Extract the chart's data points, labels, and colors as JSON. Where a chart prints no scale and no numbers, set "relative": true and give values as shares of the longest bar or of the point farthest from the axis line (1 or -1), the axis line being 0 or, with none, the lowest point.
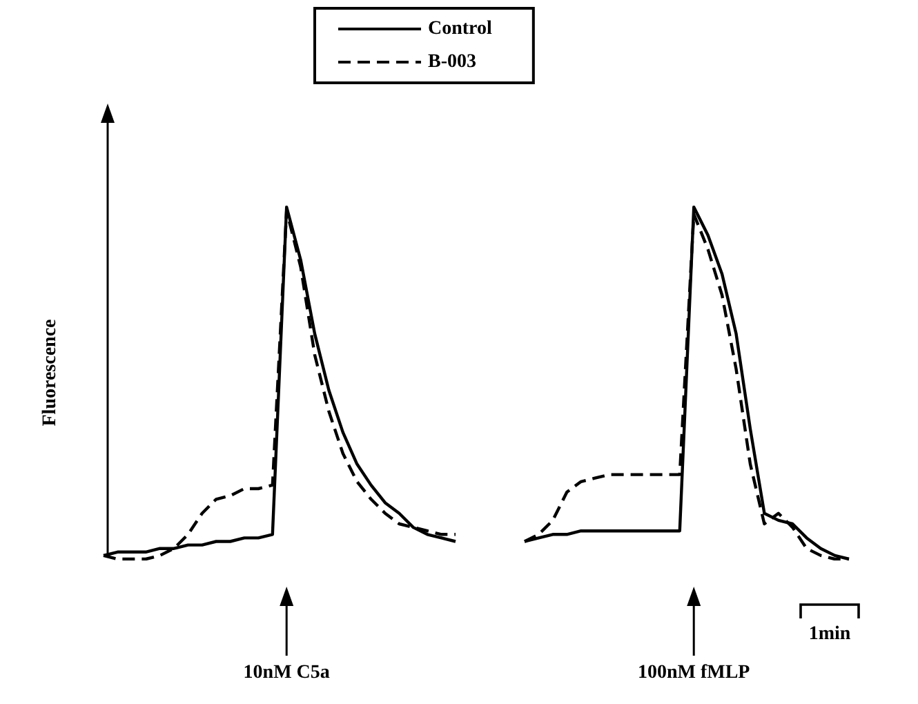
{
  "chart_data": [
    {
      "type": "line",
      "relative": true,
      "ylabel": "Fluorescence",
      "legend": "top",
      "marker": "none",
      "categories": [
        null,
        null,
        null,
        null,
        null,
        null,
        null,
        null,
        null,
        null,
        null,
        null,
        null,
        null,
        null,
        null,
        null,
        null,
        null,
        null,
        null,
        null,
        null,
        null,
        null,
        null
      ],
      "series": [
        {
          "name": "Control",
          "color": "#000000",
          "line_style": "solid",
          "values": [
            0.01,
            0.02,
            0.02,
            0.02,
            0.03,
            0.03,
            0.04,
            0.04,
            0.05,
            0.05,
            0.06,
            0.06,
            0.07,
            1,
            0.85,
            0.64,
            0.48,
            0.36,
            0.27,
            0.21,
            0.16,
            0.13,
            0.09,
            0.07,
            0.06,
            0.05
          ]
        },
        {
          "name": "B-003",
          "color": "#000000",
          "line_style": "dashed",
          "values": [
            0.01,
            0.0,
            0.0,
            0.0,
            0.01,
            0.03,
            0.07,
            0.13,
            0.17,
            0.18,
            0.2,
            0.2,
            0.21,
            0.99,
            0.83,
            0.58,
            0.42,
            0.3,
            0.22,
            0.17,
            0.13,
            0.1,
            0.09,
            0.08,
            0.07,
            0.07
          ]
        }
      ],
      "annotations": [
        "10nM C5a"
      ]
    },
    {
      "type": "line",
      "relative": true,
      "marker": "none",
      "categories": [
        null,
        null,
        null,
        null,
        null,
        null,
        null,
        null,
        null,
        null,
        null,
        null,
        null,
        null,
        null,
        null,
        null,
        null,
        null,
        null,
        null,
        null,
        null,
        null
      ],
      "series": [
        {
          "color": "#000000",
          "line_style": "solid",
          "values": [
            0.05,
            0.06,
            0.07,
            0.07,
            0.08,
            0.08,
            0.08,
            0.08,
            0.08,
            0.08,
            0.08,
            0.08,
            1,
            0.92,
            0.81,
            0.64,
            0.37,
            0.13,
            0.11,
            0.1,
            0.06,
            0.03,
            0.01,
            0.0
          ]
        },
        {
          "color": "#000000",
          "line_style": "dashed",
          "values": [
            0.05,
            0.07,
            0.11,
            0.19,
            0.22,
            0.23,
            0.24,
            0.24,
            0.24,
            0.24,
            0.24,
            0.24,
            0.98,
            0.88,
            0.75,
            0.54,
            0.27,
            0.1,
            0.13,
            0.09,
            0.03,
            0.01,
            0.0,
            0.0
          ]
        }
      ],
      "annotations": [
        "100nM fMLP",
        "1min"
      ]
    }
  ]
}
